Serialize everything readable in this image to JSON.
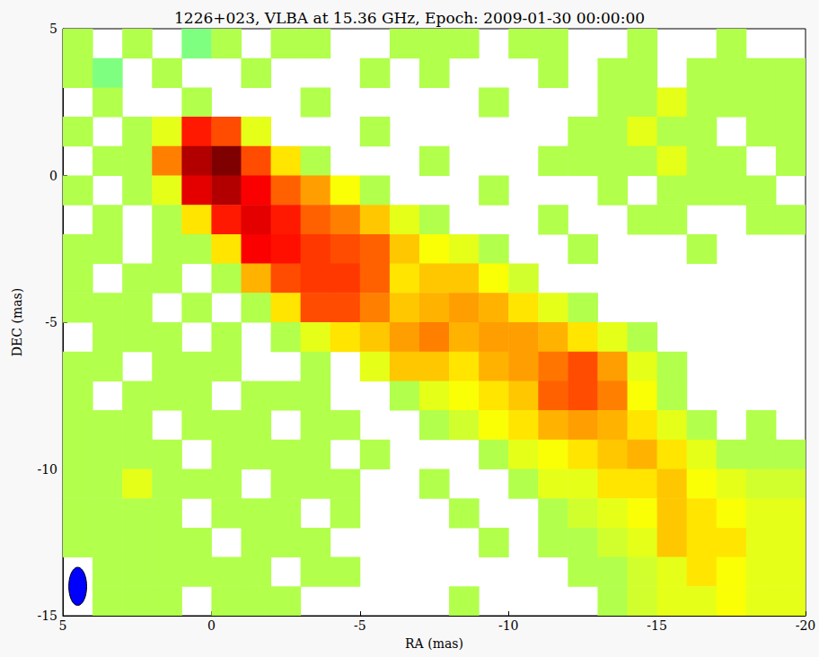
{
  "chart_data": {
    "type": "heatmap",
    "title": "1226+023, VLBA at 15.36 GHz, Epoch: 2009-01-30 00:00:00",
    "x_label": "RA (mas)",
    "y_label": "DEC (mas)",
    "xlim": [
      5,
      -20
    ],
    "ylim": [
      -15,
      5
    ],
    "xticks": [
      5,
      0,
      -5,
      -10,
      -15,
      -20
    ],
    "yticks": [
      -15,
      -10,
      -5,
      0,
      5
    ],
    "grid": false,
    "zlim": [
      0,
      1
    ],
    "x": [
      4.5,
      3.5,
      2.5,
      1.5,
      0.5,
      -0.5,
      -1.5,
      -2.5,
      -3.5,
      -4.5,
      -5.5,
      -6.5,
      -7.5,
      -8.5,
      -9.5,
      -10.5,
      -11.5,
      -12.5,
      -13.5,
      -14.5,
      -15.5,
      -16.5,
      -17.5,
      -18.5,
      -19.5
    ],
    "y": [
      4.5,
      3.5,
      2.5,
      1.5,
      0.5,
      -0.5,
      -1.5,
      -2.5,
      -3.5,
      -4.5,
      -5.5,
      -6.5,
      -7.5,
      -8.5,
      -9.5,
      -10.5,
      -11.5,
      -12.5,
      -13.5,
      -14.5
    ],
    "cells": [
      [
        0.55,
        null,
        0.55,
        null,
        0.5,
        0.55,
        null,
        0.55,
        0.55,
        null,
        null,
        0.55,
        0.55,
        0.55,
        null,
        0.55,
        0.55,
        null,
        null,
        0.55,
        null,
        null,
        0.55,
        null,
        null
      ],
      [
        0.55,
        0.5,
        null,
        0.55,
        null,
        null,
        0.55,
        null,
        null,
        null,
        0.55,
        null,
        0.55,
        null,
        null,
        null,
        0.55,
        null,
        0.55,
        0.55,
        null,
        0.55,
        0.55,
        0.55,
        0.55
      ],
      [
        null,
        0.55,
        null,
        null,
        0.55,
        null,
        null,
        null,
        0.55,
        null,
        null,
        null,
        null,
        null,
        0.55,
        null,
        null,
        null,
        0.55,
        0.55,
        0.6,
        0.55,
        0.55,
        0.55,
        0.55
      ],
      [
        0.55,
        null,
        0.55,
        0.6,
        0.85,
        0.8,
        0.6,
        null,
        null,
        null,
        0.55,
        null,
        null,
        null,
        null,
        null,
        null,
        0.55,
        0.55,
        0.6,
        0.55,
        0.55,
        null,
        0.55,
        0.55
      ],
      [
        null,
        0.55,
        0.55,
        0.75,
        0.95,
        1.0,
        0.8,
        0.65,
        0.55,
        null,
        null,
        null,
        0.55,
        null,
        null,
        null,
        0.55,
        0.55,
        0.55,
        0.55,
        0.6,
        0.55,
        0.55,
        null,
        0.55
      ],
      [
        0.55,
        null,
        0.55,
        0.6,
        0.9,
        0.95,
        0.88,
        0.78,
        0.72,
        0.62,
        0.55,
        null,
        null,
        null,
        0.55,
        null,
        null,
        null,
        0.55,
        null,
        0.55,
        0.55,
        0.55,
        0.55,
        null
      ],
      [
        null,
        0.55,
        null,
        0.55,
        0.65,
        0.85,
        0.9,
        0.85,
        0.78,
        0.75,
        0.68,
        0.6,
        0.55,
        null,
        null,
        null,
        0.55,
        null,
        null,
        0.55,
        0.55,
        null,
        null,
        0.55,
        0.55
      ],
      [
        0.55,
        0.55,
        null,
        0.55,
        0.55,
        0.65,
        0.88,
        0.86,
        0.82,
        0.8,
        0.78,
        0.68,
        0.62,
        0.6,
        0.55,
        null,
        null,
        0.55,
        null,
        null,
        null,
        0.55,
        null,
        null,
        null
      ],
      [
        0.55,
        null,
        0.55,
        0.55,
        null,
        0.55,
        0.7,
        0.8,
        0.82,
        0.82,
        0.78,
        0.65,
        0.68,
        0.68,
        0.62,
        0.58,
        null,
        null,
        null,
        null,
        null,
        null,
        null,
        null,
        null
      ],
      [
        0.55,
        0.55,
        0.55,
        null,
        0.55,
        null,
        0.55,
        0.65,
        0.8,
        0.8,
        0.75,
        0.68,
        0.7,
        0.72,
        0.7,
        0.65,
        0.6,
        0.55,
        null,
        null,
        null,
        null,
        null,
        null,
        null
      ],
      [
        null,
        0.55,
        0.55,
        0.55,
        null,
        0.55,
        null,
        0.55,
        0.6,
        0.65,
        0.68,
        0.72,
        0.75,
        0.7,
        0.72,
        0.72,
        0.7,
        0.65,
        0.6,
        0.55,
        null,
        null,
        null,
        null,
        null
      ],
      [
        0.55,
        0.55,
        null,
        0.55,
        0.55,
        0.55,
        null,
        null,
        0.55,
        null,
        0.6,
        0.68,
        0.68,
        0.65,
        0.7,
        0.72,
        0.76,
        0.8,
        0.72,
        0.6,
        0.55,
        null,
        null,
        null,
        null
      ],
      [
        0.55,
        null,
        0.55,
        0.55,
        0.55,
        null,
        0.55,
        0.55,
        0.55,
        null,
        null,
        0.55,
        0.6,
        0.62,
        0.65,
        0.68,
        0.78,
        0.8,
        0.75,
        0.62,
        0.55,
        null,
        null,
        null,
        null
      ],
      [
        0.55,
        0.55,
        0.55,
        null,
        0.55,
        0.55,
        0.55,
        null,
        0.55,
        0.55,
        null,
        null,
        0.55,
        0.58,
        0.62,
        0.65,
        0.7,
        0.72,
        0.7,
        0.65,
        0.6,
        0.55,
        null,
        0.55,
        null
      ],
      [
        0.55,
        0.55,
        0.55,
        0.55,
        null,
        0.55,
        0.55,
        0.55,
        0.55,
        null,
        0.55,
        null,
        null,
        null,
        0.55,
        0.6,
        0.62,
        0.65,
        0.68,
        0.7,
        0.65,
        0.6,
        0.55,
        0.55,
        0.55
      ],
      [
        0.55,
        0.55,
        0.6,
        0.55,
        0.55,
        0.55,
        null,
        0.55,
        0.55,
        0.55,
        null,
        null,
        0.55,
        null,
        null,
        0.55,
        0.6,
        0.6,
        0.65,
        0.65,
        0.68,
        0.62,
        0.6,
        0.58,
        0.58
      ],
      [
        0.55,
        0.55,
        0.55,
        0.55,
        null,
        0.55,
        0.55,
        0.55,
        null,
        0.55,
        null,
        null,
        null,
        0.55,
        null,
        null,
        0.55,
        0.58,
        0.6,
        0.62,
        0.68,
        0.65,
        0.62,
        0.6,
        0.6
      ],
      [
        0.55,
        0.55,
        0.55,
        0.55,
        0.55,
        null,
        0.55,
        0.55,
        0.55,
        null,
        null,
        null,
        null,
        null,
        0.55,
        null,
        0.55,
        0.55,
        0.58,
        0.6,
        0.68,
        0.65,
        0.65,
        0.6,
        0.6
      ],
      [
        null,
        0.55,
        0.55,
        0.55,
        0.55,
        0.55,
        0.55,
        null,
        0.55,
        0.55,
        null,
        null,
        null,
        null,
        null,
        null,
        null,
        0.55,
        0.55,
        0.58,
        0.6,
        0.65,
        0.62,
        0.6,
        0.6
      ],
      [
        null,
        0.55,
        0.55,
        0.55,
        null,
        0.55,
        0.55,
        0.55,
        null,
        null,
        null,
        null,
        null,
        0.55,
        null,
        null,
        null,
        null,
        0.55,
        0.58,
        0.6,
        0.6,
        0.62,
        0.6,
        0.6
      ]
    ],
    "beam": {
      "x": 4.5,
      "y": -14,
      "width": 0.6,
      "height": 1.3,
      "color": "#0000ff"
    }
  }
}
